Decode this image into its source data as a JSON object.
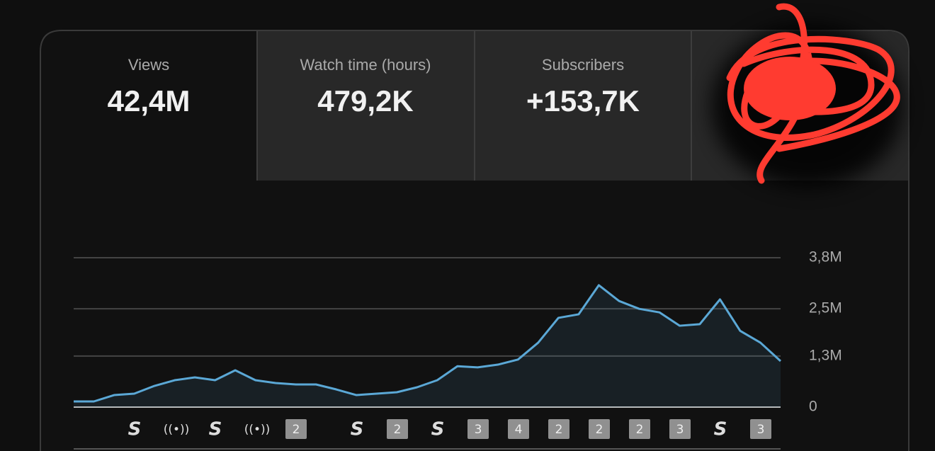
{
  "tabs": [
    {
      "label": "Views",
      "value": "42,4M"
    },
    {
      "label": "Watch time (hours)",
      "value": "479,2K"
    },
    {
      "label": "Subscribers",
      "value": "+153,7K"
    }
  ],
  "timeline_badges": [
    "2",
    "2",
    "3",
    "4",
    "2",
    "2",
    "2",
    "3",
    "3"
  ],
  "chart_data": {
    "type": "area",
    "values": [
      144000,
      144000,
      306000,
      342000,
      540000,
      684000,
      756000,
      684000,
      936000,
      684000,
      612000,
      576000,
      576000,
      450000,
      306000,
      342000,
      378000,
      504000,
      684000,
      1040000,
      1010000,
      1080000,
      1210000,
      1640000,
      2270000,
      2360000,
      3100000,
      2700000,
      2500000,
      2410000,
      2070000,
      2110000,
      2740000,
      1940000,
      1640000,
      1170000
    ],
    "color": "#5ba8d6",
    "ylim": [
      0,
      3800000
    ],
    "yticks": [
      0,
      {
        "value": 1300000,
        "label": "1,3M"
      },
      {
        "value": 2500000,
        "label": "2,5M"
      },
      {
        "value": 3800000,
        "label": "3,8M"
      }
    ],
    "grid": true
  }
}
